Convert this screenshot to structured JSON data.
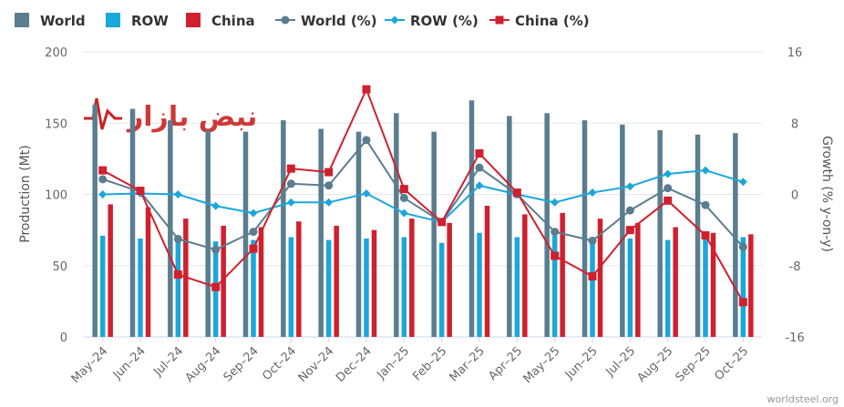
{
  "chart_data": {
    "type": "bar+line",
    "categories": [
      "May–24",
      "Jun–24",
      "Jul–24",
      "Aug–24",
      "Sep–24",
      "Oct–24",
      "Nov–24",
      "Dec–24",
      "Jan–25",
      "Feb–25",
      "Mar–25",
      "Apr–25",
      "May–25",
      "Jun–25",
      "Jul–25",
      "Aug–25",
      "Sep–25",
      "Oct–25"
    ],
    "ylabel": "Production (Mt)",
    "y2label": "Growth (% y-on-y)",
    "ylim": [
      0,
      200
    ],
    "yticks": [
      0,
      50,
      100,
      150,
      200
    ],
    "y2lim": [
      -16,
      16
    ],
    "y2ticks": [
      -16,
      -8,
      0,
      8,
      16
    ],
    "bar_series": [
      {
        "name": "World",
        "color": "#5a7d8f",
        "values": [
          163,
          160,
          152,
          145,
          144,
          152,
          146,
          144,
          157,
          144,
          166,
          155,
          157,
          152,
          149,
          145,
          142,
          143
        ]
      },
      {
        "name": "ROW",
        "color": "#1aa7dc",
        "values": [
          71,
          69,
          70,
          67,
          68,
          70,
          68,
          69,
          70,
          66,
          73,
          70,
          71,
          69,
          69,
          68,
          69,
          70
        ]
      },
      {
        "name": "China",
        "color": "#d0202e",
        "values": [
          93,
          91,
          83,
          78,
          77,
          81,
          78,
          75,
          83,
          80,
          92,
          86,
          87,
          83,
          80,
          77,
          73,
          72
        ]
      }
    ],
    "line_series": [
      {
        "name": "World (%)",
        "color": "#5a7d8f",
        "marker": "circle",
        "values": [
          1.7,
          0.3,
          -5.0,
          -6.2,
          -4.2,
          1.2,
          1.0,
          6.1,
          -0.4,
          -3.1,
          3.0,
          0.0,
          -4.2,
          -5.2,
          -1.8,
          0.7,
          -1.2,
          -5.9
        ]
      },
      {
        "name": "ROW (%)",
        "color": "#1aa7dc",
        "marker": "diamond",
        "values": [
          0.0,
          0.1,
          0.0,
          -1.3,
          -2.1,
          -0.9,
          -0.9,
          0.1,
          -2.1,
          -3.1,
          1.0,
          0.0,
          -0.9,
          0.2,
          0.9,
          2.3,
          2.7,
          1.4
        ]
      },
      {
        "name": "China (%)",
        "color": "#d0202e",
        "marker": "square",
        "values": [
          2.7,
          0.4,
          -9.0,
          -10.4,
          -6.1,
          2.9,
          2.5,
          11.8,
          0.6,
          -3.1,
          4.6,
          0.2,
          -6.9,
          -9.2,
          -4.0,
          -0.7,
          -4.6,
          -12.1
        ]
      }
    ],
    "legend_position": "top"
  },
  "credit": "worldsteel.org",
  "watermark_text": "نبض بازار"
}
